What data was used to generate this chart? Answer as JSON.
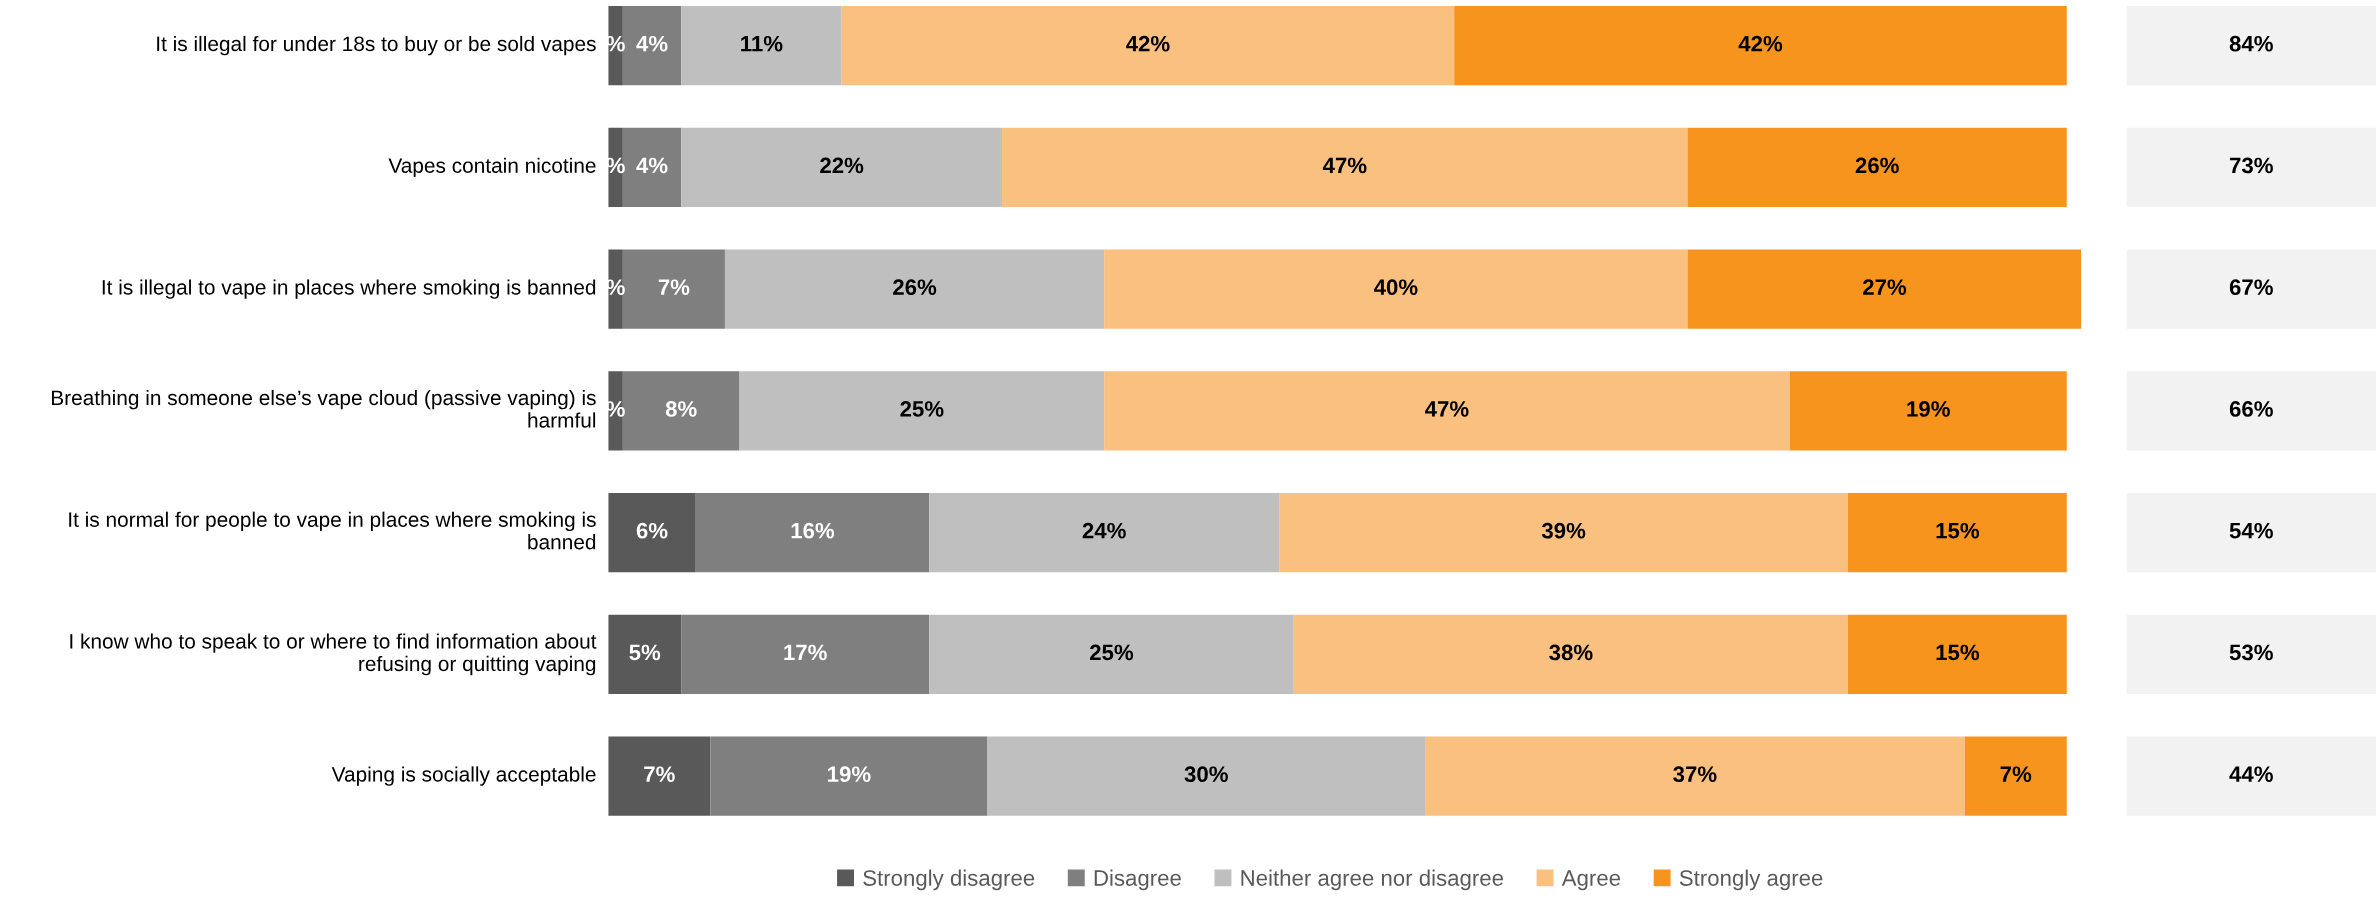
{
  "chart_data": [
    {
      "type": "bar",
      "orientation": "horizontal",
      "stacked": true,
      "tick_labels": false,
      "grid": false,
      "legend": "bottom",
      "xlim": [
        0,
        101
      ],
      "categories": [
        "It is illegal for under 18s to buy or be sold vapes",
        "Vapes contain nicotine",
        "It is illegal to vape in places where smoking is banned",
        "Breathing in someone else’s vape cloud (passive vaping) is harmful",
        "It is normal for people to vape in places where smoking is banned",
        "I know who to speak to or where to find information about refusing or quitting vaping",
        "Vaping is socially acceptable"
      ],
      "series": [
        {
          "name": "Strongly disagree",
          "color": "#595959",
          "values": [
            1,
            1,
            1,
            1,
            6,
            5,
            7
          ],
          "value_labels": [
            "%",
            "%",
            "%",
            "%",
            "6%",
            "5%",
            "7%"
          ]
        },
        {
          "name": "Disagree",
          "color": "#7f7f7f",
          "values": [
            4,
            4,
            7,
            8,
            16,
            17,
            19
          ],
          "value_labels": [
            "4%",
            "4%",
            "7%",
            "8%",
            "16%",
            "17%",
            "19%"
          ]
        },
        {
          "name": "Neither agree nor disagree",
          "color": "#bfbfbf",
          "values": [
            11,
            22,
            26,
            25,
            24,
            25,
            30
          ],
          "value_labels": [
            "11%",
            "22%",
            "26%",
            "25%",
            "24%",
            "25%",
            "30%"
          ]
        },
        {
          "name": "Agree",
          "color": "#fac080",
          "values": [
            42,
            47,
            40,
            47,
            39,
            38,
            37
          ],
          "value_labels": [
            "42%",
            "47%",
            "40%",
            "47%",
            "39%",
            "38%",
            "37%"
          ]
        },
        {
          "name": "Strongly agree",
          "color": "#f7941e",
          "values": [
            42,
            26,
            27,
            19,
            15,
            15,
            7
          ],
          "value_labels": [
            "42%",
            "26%",
            "27%",
            "19%",
            "15%",
            "15%",
            "7%"
          ]
        }
      ]
    },
    {
      "type": "other",
      "annotations": [
        "84%",
        "73%",
        "67%",
        "66%",
        "54%",
        "53%",
        "44%"
      ]
    }
  ]
}
